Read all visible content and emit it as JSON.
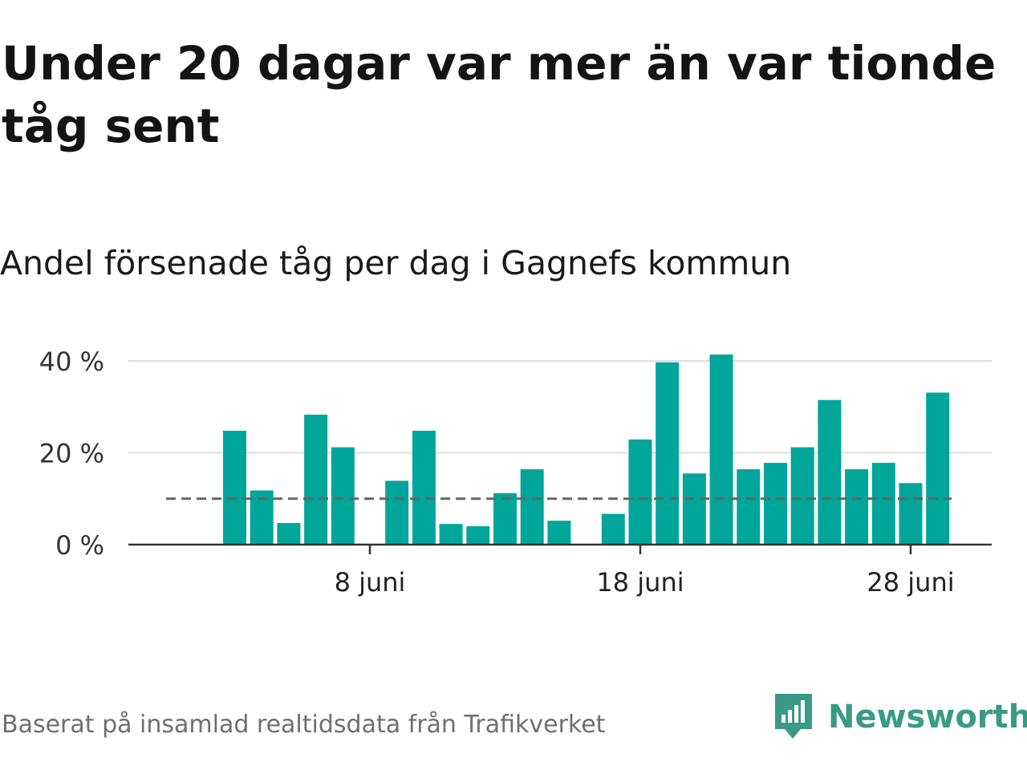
{
  "title": "Under 20 dagar var mer än var tionde tåg sent",
  "subtitle": "Andel försenade tåg per dag i Gagnefs kommun",
  "source": "Baserat på insamlad realtidsdata från Trafikverket",
  "brand": {
    "name": "Newsworthy",
    "color": "#3b9a86",
    "icon": "newsworthy-logo-icon"
  },
  "colors": {
    "bar": "#00a699",
    "grid": "#dddddd",
    "axis": "#333333",
    "reference": "#666666"
  },
  "chart_data": {
    "type": "bar",
    "x_unit": "day of June",
    "x": [
      1,
      2,
      3,
      4,
      5,
      6,
      7,
      8,
      9,
      10,
      11,
      12,
      13,
      14,
      15,
      16,
      17,
      18,
      19,
      20,
      21,
      22,
      23,
      24,
      25,
      26,
      27,
      28,
      29,
      30
    ],
    "values": [
      null,
      null,
      24.8,
      11.8,
      4.7,
      28.3,
      21.2,
      null,
      13.9,
      24.8,
      4.5,
      4.0,
      11.2,
      16.4,
      5.2,
      null,
      6.7,
      22.9,
      39.7,
      15.5,
      41.4,
      16.4,
      17.8,
      21.2,
      31.5,
      16.4,
      17.8,
      13.4,
      33.1,
      null
    ],
    "reference_line": 10,
    "ylim": [
      0,
      43
    ],
    "y_ticks": [
      0,
      20,
      40
    ],
    "y_tick_labels": [
      "0 %",
      "20 %",
      "40 %"
    ],
    "x_ticks": [
      8,
      18,
      28
    ],
    "x_tick_labels": [
      "8 juni",
      "18 juni",
      "28 juni"
    ],
    "grid": true,
    "xlabel": "",
    "ylabel": ""
  }
}
